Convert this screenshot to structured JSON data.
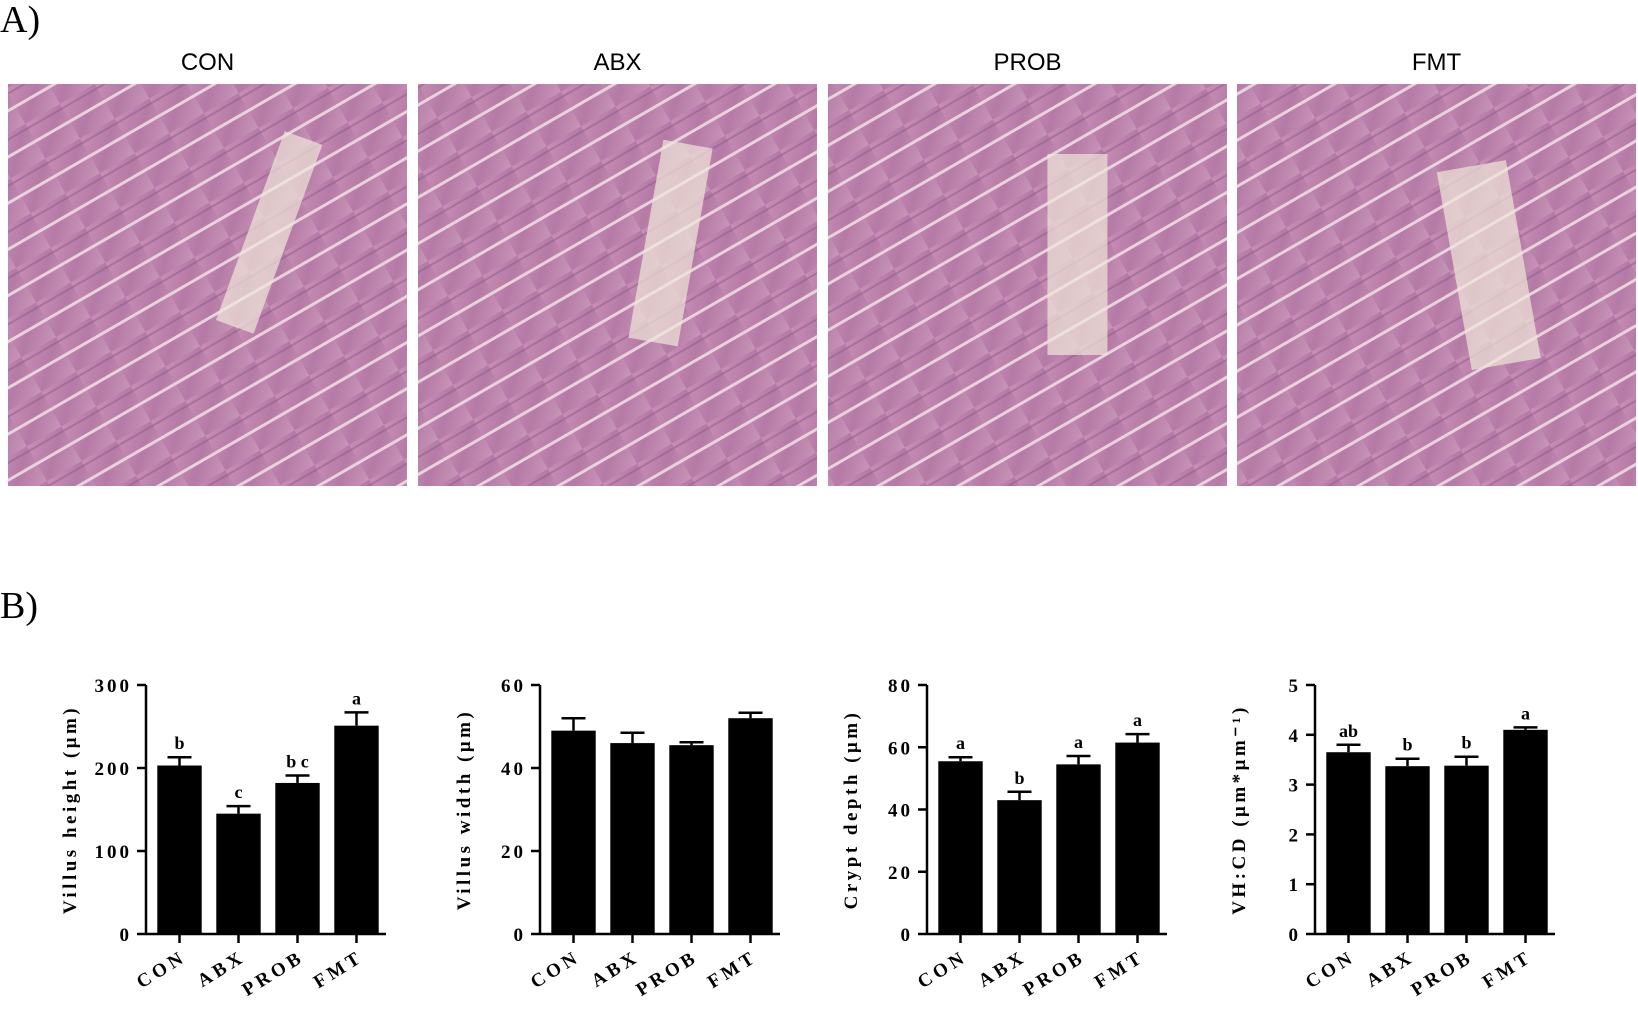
{
  "panel_a": {
    "label": "A)",
    "images": [
      "CON",
      "ABX",
      "PROB",
      "FMT"
    ]
  },
  "panel_b": {
    "label": "B)"
  },
  "chart_data": [
    {
      "type": "bar",
      "ylabel": "Villus height (μm)",
      "categories": [
        "CON",
        "ABX",
        "PROB",
        "FMT"
      ],
      "values": [
        203,
        145,
        182,
        251
      ],
      "errors": [
        10,
        9,
        9,
        16
      ],
      "annotations": [
        "b",
        "c",
        "b c",
        "a"
      ],
      "color": "#000000",
      "ylim": [
        0,
        300
      ],
      "yticks": [
        0,
        100,
        200,
        300
      ]
    },
    {
      "type": "bar",
      "ylabel": "Villus width (μm)",
      "categories": [
        "CON",
        "ABX",
        "PROB",
        "FMT"
      ],
      "values": [
        49,
        46,
        45.5,
        52
      ],
      "errors": [
        3,
        2.5,
        0.7,
        1.3
      ],
      "color": "#000000",
      "ylim": [
        0,
        60
      ],
      "yticks": [
        0,
        20,
        40,
        60
      ]
    },
    {
      "type": "bar",
      "ylabel": "Crypt depth (μm)",
      "categories": [
        "CON",
        "ABX",
        "PROB",
        "FMT"
      ],
      "values": [
        55.5,
        43,
        54.5,
        61.5
      ],
      "errors": [
        1.3,
        2.7,
        2.7,
        2.7
      ],
      "annotations": [
        "a",
        "b",
        "a",
        "a"
      ],
      "color": "#000000",
      "ylim": [
        0,
        80
      ],
      "yticks": [
        0,
        20,
        40,
        60,
        80
      ]
    },
    {
      "type": "bar",
      "ylabel": "VH:CD (μm*μm⁻¹)",
      "categories": [
        "CON",
        "ABX",
        "PROB",
        "FMT"
      ],
      "values": [
        3.65,
        3.37,
        3.38,
        4.1
      ],
      "errors": [
        0.15,
        0.15,
        0.18,
        0.05
      ],
      "annotations": [
        "ab",
        "b",
        "b",
        "a"
      ],
      "color": "#000000",
      "ylim": [
        0,
        5
      ],
      "yticks": [
        0,
        1,
        2,
        3,
        4,
        5
      ]
    }
  ]
}
